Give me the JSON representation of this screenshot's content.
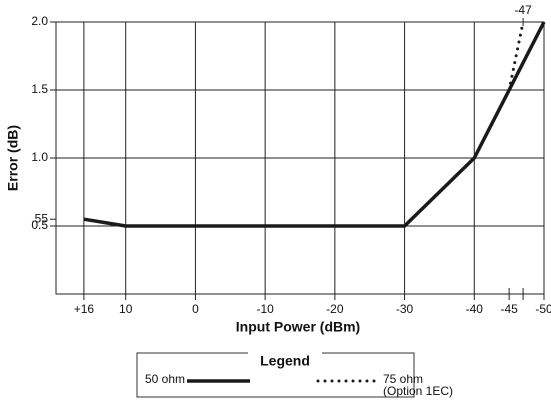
{
  "chart_data": {
    "type": "line",
    "ylabel": "Error (dB)",
    "xlabel": "Input Power (dBm)",
    "xlim": [
      20,
      -50
    ],
    "ylim": [
      0,
      2
    ],
    "xticks": [
      {
        "value": 16,
        "label": "+16"
      },
      10,
      0,
      -10,
      -20,
      -30,
      -40,
      -50
    ],
    "minor_xticks": [
      -45
    ],
    "top_xticks": [
      -47
    ],
    "yticks": [
      0.5,
      {
        "value": 1.0,
        "label": "1.0"
      },
      {
        "value": 1.5,
        "label": "1.5"
      },
      {
        "value": 2.0,
        "label": "2.0"
      }
    ],
    "minor_yticks": [
      {
        "value": 0.55,
        "label": ".55"
      }
    ],
    "grid": true,
    "legend_title": "Legend",
    "series": [
      {
        "name": "50 ohm",
        "color": "#1a1a1a",
        "style": "solid",
        "x": [
          16,
          10,
          -30,
          -40,
          -50
        ],
        "values": [
          0.55,
          0.5,
          0.5,
          1.0,
          2.0
        ]
      },
      {
        "name": "75 ohm",
        "name_note": "(Option 1EC)",
        "color": "#1a1a1a",
        "style": "dotted",
        "x": [
          -45,
          -47
        ],
        "values": [
          1.5,
          2.0
        ]
      }
    ]
  }
}
